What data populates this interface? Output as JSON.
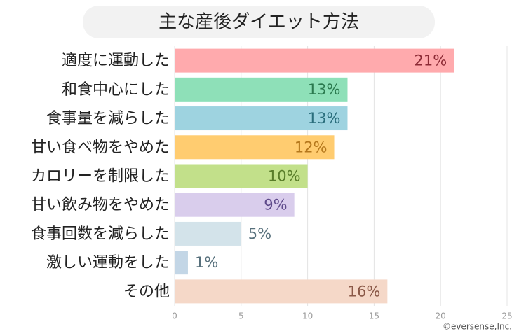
{
  "chart_data": {
    "type": "bar",
    "orientation": "horizontal",
    "title": "主な産後ダイエット方法",
    "categories": [
      "適度に運動した",
      "和食中心にした",
      "食事量を減らした",
      "甘い食べ物をやめた",
      "カロリーを制限した",
      "甘い飲み物をやめた",
      "食事回数を減らした",
      "激しい運動をした",
      "その他"
    ],
    "values": [
      21,
      13,
      13,
      12,
      10,
      9,
      5,
      1,
      16
    ],
    "value_labels": [
      "21%",
      "13%",
      "13%",
      "12%",
      "10%",
      "9%",
      "5%",
      "1%",
      "16%"
    ],
    "colors": [
      "#ffaaad",
      "#8ee0b8",
      "#9ed3e0",
      "#ffcc70",
      "#c2e08a",
      "#d9cdec",
      "#d3e3ea",
      "#c3d6e6",
      "#f5d8c8"
    ],
    "label_colors": [
      "#8c2a35",
      "#2b7a4f",
      "#2a6e7c",
      "#b5771c",
      "#597d29",
      "#5e4a8a",
      "#57707c",
      "#57707c",
      "#8a5847"
    ],
    "xlim": [
      0,
      25
    ],
    "xticks": [
      0,
      5,
      10,
      15,
      20,
      25
    ],
    "grid": true,
    "credit": "©eversense,Inc."
  }
}
